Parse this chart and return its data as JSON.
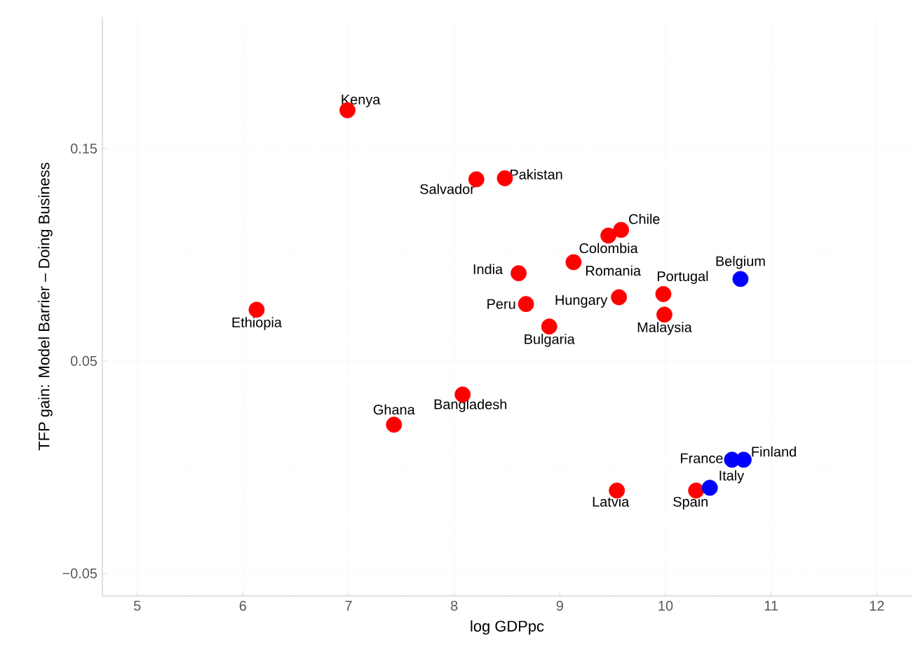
{
  "chart_data": {
    "type": "scatter",
    "xlabel": "log GDPpc",
    "ylabel": "TFP gain: Model Barrier – Doing Business",
    "xlim": [
      4.67,
      12.33
    ],
    "ylim": [
      -0.0606,
      0.212
    ],
    "xticks": [
      5,
      6,
      7,
      8,
      9,
      10,
      11,
      12
    ],
    "yticks": [
      {
        "value": -0.05,
        "label": "−0.05"
      },
      0.05,
      0.15
    ],
    "grid": true,
    "marker": "circle",
    "series": [
      {
        "color": "#ff0000",
        "x": [
          6.99,
          8.21,
          8.48,
          9.58,
          9.46,
          9.13,
          8.61,
          9.98,
          9.56,
          9.99,
          8.68,
          8.9,
          6.13,
          8.08,
          7.43,
          9.54,
          10.29
        ],
        "values": [
          0.168,
          0.1355,
          0.136,
          0.1117,
          0.109,
          0.0965,
          0.0913,
          0.0815,
          0.08,
          0.0718,
          0.0768,
          0.0662,
          0.0741,
          0.0342,
          0.02,
          -0.011,
          -0.011
        ]
      },
      {
        "color": "#0000ff",
        "x": [
          10.71,
          10.63,
          10.74,
          10.42
        ],
        "values": [
          0.0886,
          0.0035,
          0.0035,
          -0.0097
        ]
      }
    ],
    "annotations": [
      {
        "text": "Kenya",
        "x": 6.99,
        "y": 0.168
      },
      {
        "text": "Salvador",
        "x": 8.21,
        "y": 0.1355
      },
      {
        "text": "Pakistan",
        "x": 8.48,
        "y": 0.136
      },
      {
        "text": "Chile",
        "x": 9.58,
        "y": 0.1117
      },
      {
        "text": "Colombia",
        "x": 9.46,
        "y": 0.109
      },
      {
        "text": "Romania",
        "x": 9.13,
        "y": 0.0965
      },
      {
        "text": "India",
        "x": 8.61,
        "y": 0.0913
      },
      {
        "text": "Portugal",
        "x": 9.98,
        "y": 0.0815
      },
      {
        "text": "Hungary",
        "x": 9.56,
        "y": 0.08
      },
      {
        "text": "Malaysia",
        "x": 9.99,
        "y": 0.0718
      },
      {
        "text": "Peru",
        "x": 8.68,
        "y": 0.0768
      },
      {
        "text": "Bulgaria",
        "x": 8.9,
        "y": 0.0662
      },
      {
        "text": "Ethiopia",
        "x": 6.13,
        "y": 0.0741
      },
      {
        "text": "Bangladesh",
        "x": 8.08,
        "y": 0.0342
      },
      {
        "text": "Ghana",
        "x": 7.43,
        "y": 0.02
      },
      {
        "text": "Latvia",
        "x": 9.54,
        "y": -0.011
      },
      {
        "text": "Spain",
        "x": 10.29,
        "y": -0.011
      },
      {
        "text": "Belgium",
        "x": 10.71,
        "y": 0.0886
      },
      {
        "text": "France",
        "x": 10.63,
        "y": 0.0035
      },
      {
        "text": "Finland",
        "x": 10.74,
        "y": 0.0035
      },
      {
        "text": "Italy",
        "x": 10.42,
        "y": -0.0097
      }
    ]
  }
}
